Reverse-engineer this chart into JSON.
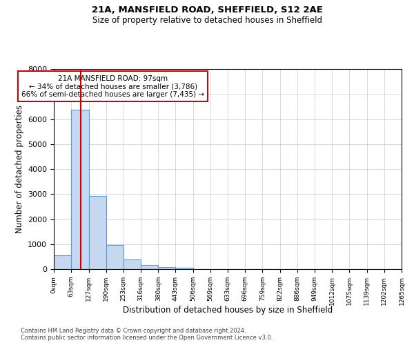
{
  "title1": "21A, MANSFIELD ROAD, SHEFFIELD, S12 2AE",
  "title2": "Size of property relative to detached houses in Sheffield",
  "xlabel": "Distribution of detached houses by size in Sheffield",
  "ylabel": "Number of detached properties",
  "bar_color": "#c5d8f0",
  "bar_edge_color": "#5b9bd5",
  "bin_edges": [
    0,
    63,
    127,
    190,
    253,
    316,
    380,
    443,
    506,
    569,
    633,
    696,
    759,
    822,
    886,
    949,
    1012,
    1075,
    1139,
    1202,
    1265
  ],
  "bar_heights": [
    550,
    6380,
    2930,
    975,
    380,
    165,
    90,
    50,
    10,
    5,
    3,
    2,
    1,
    1,
    0,
    0,
    0,
    0,
    0,
    0
  ],
  "property_size": 97,
  "red_line_color": "#cc0000",
  "annotation_text": "21A MANSFIELD ROAD: 97sqm\n← 34% of detached houses are smaller (3,786)\n66% of semi-detached houses are larger (7,435) →",
  "annotation_box_color": "#ffffff",
  "annotation_box_edge_color": "#cc0000",
  "ylim": [
    0,
    8000
  ],
  "yticks": [
    0,
    1000,
    2000,
    3000,
    4000,
    5000,
    6000,
    7000,
    8000
  ],
  "tick_labels": [
    "0sqm",
    "63sqm",
    "127sqm",
    "190sqm",
    "253sqm",
    "316sqm",
    "380sqm",
    "443sqm",
    "506sqm",
    "569sqm",
    "633sqm",
    "696sqm",
    "759sqm",
    "822sqm",
    "886sqm",
    "949sqm",
    "1012sqm",
    "1075sqm",
    "1139sqm",
    "1202sqm",
    "1265sqm"
  ],
  "footnote1": "Contains HM Land Registry data © Crown copyright and database right 2024.",
  "footnote2": "Contains public sector information licensed under the Open Government Licence v3.0.",
  "background_color": "#ffffff",
  "grid_color": "#c8d4e3"
}
